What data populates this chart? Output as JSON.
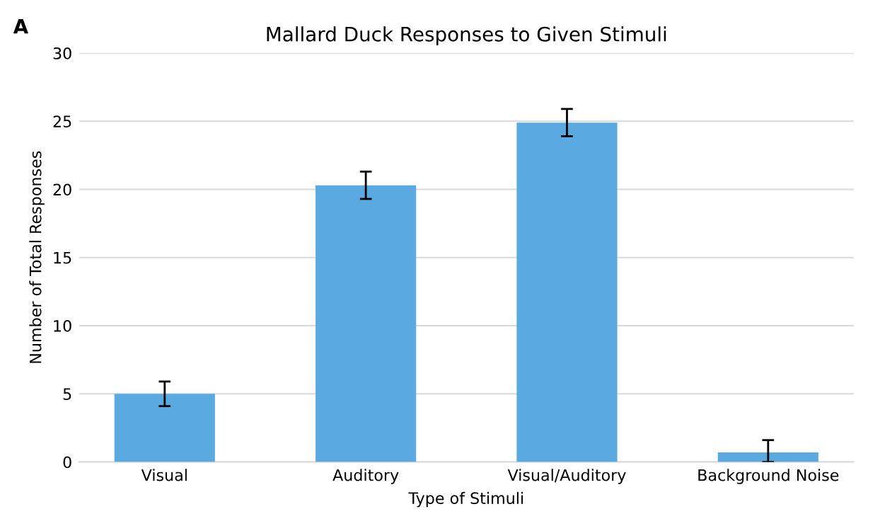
{
  "chart_data": {
    "type": "bar",
    "title": "Mallard Duck Responses to Given Stimuli",
    "xlabel": "Type of Stimuli",
    "ylabel": "Number of Total Responses",
    "categories": [
      "Visual",
      "Auditory",
      "Visual/Auditory",
      "Background Noise"
    ],
    "values": [
      5.0,
      20.3,
      24.9,
      0.7
    ],
    "errors": [
      0.9,
      1.0,
      1.0,
      [
        0.0,
        1.6
      ]
    ],
    "color": "#5aa9e0",
    "ylim": [
      0,
      30
    ],
    "yticks": [
      0,
      5,
      10,
      15,
      20,
      25,
      30
    ],
    "grid": "y",
    "annotations": [
      "A"
    ]
  }
}
